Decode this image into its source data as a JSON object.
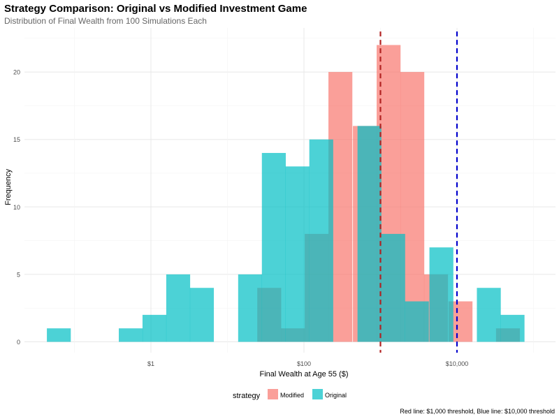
{
  "chart_data": {
    "type": "histogram",
    "title": "Strategy Comparison: Original vs Modified Investment Game",
    "subtitle": "Distribution of Final Wealth from 100 Simulations Each",
    "xlabel": "Final Wealth at Age 55 ($)",
    "ylabel": "Frequency",
    "x_scale": "log10",
    "x_bin_width_log10": 0.3125,
    "xlim_log10": [
      -1.2,
      4.95
    ],
    "ylim": [
      0,
      23
    ],
    "x_ticks": [
      {
        "value_log10": 0,
        "label": "$1"
      },
      {
        "value_log10": 2,
        "label": "$100"
      },
      {
        "value_log10": 4,
        "label": "$10,000"
      }
    ],
    "y_ticks": [
      0,
      5,
      10,
      15,
      20
    ],
    "legend": {
      "title": "strategy",
      "position": "bottom",
      "entries": [
        "Modified",
        "Original"
      ]
    },
    "series": [
      {
        "name": "Modified",
        "color": "#F8766D",
        "bins": [
          {
            "x0_log10": 1.39,
            "count": 4
          },
          {
            "x0_log10": 1.7,
            "count": 1
          },
          {
            "x0_log10": 2.01,
            "count": 8
          },
          {
            "x0_log10": 2.32,
            "count": 20
          },
          {
            "x0_log10": 2.64,
            "count": 16
          },
          {
            "x0_log10": 2.95,
            "count": 22
          },
          {
            "x0_log10": 3.26,
            "count": 20
          },
          {
            "x0_log10": 3.57,
            "count": 5
          },
          {
            "x0_log10": 3.89,
            "count": 3
          },
          {
            "x0_log10": 4.51,
            "count": 1
          }
        ]
      },
      {
        "name": "Original",
        "color": "#00BFC4",
        "bins": [
          {
            "x0_log10": -1.36,
            "count": 1
          },
          {
            "x0_log10": -0.42,
            "count": 1
          },
          {
            "x0_log10": -0.11,
            "count": 2
          },
          {
            "x0_log10": 0.2,
            "count": 5
          },
          {
            "x0_log10": 0.51,
            "count": 4
          },
          {
            "x0_log10": 1.14,
            "count": 5
          },
          {
            "x0_log10": 1.45,
            "count": 14
          },
          {
            "x0_log10": 1.76,
            "count": 13
          },
          {
            "x0_log10": 2.07,
            "count": 15
          },
          {
            "x0_log10": 2.7,
            "count": 16
          },
          {
            "x0_log10": 3.01,
            "count": 8
          },
          {
            "x0_log10": 3.32,
            "count": 3
          },
          {
            "x0_log10": 3.64,
            "count": 7
          },
          {
            "x0_log10": 4.26,
            "count": 4
          },
          {
            "x0_log10": 4.57,
            "count": 2
          }
        ]
      }
    ],
    "reference_lines": [
      {
        "value": 1000,
        "color": "#B22222",
        "style": "dashed"
      },
      {
        "value": 10000,
        "color": "#0000CD",
        "style": "dashed"
      }
    ],
    "caption": "Red line: $1,000 threshold, Blue line: $10,000 threshold"
  }
}
